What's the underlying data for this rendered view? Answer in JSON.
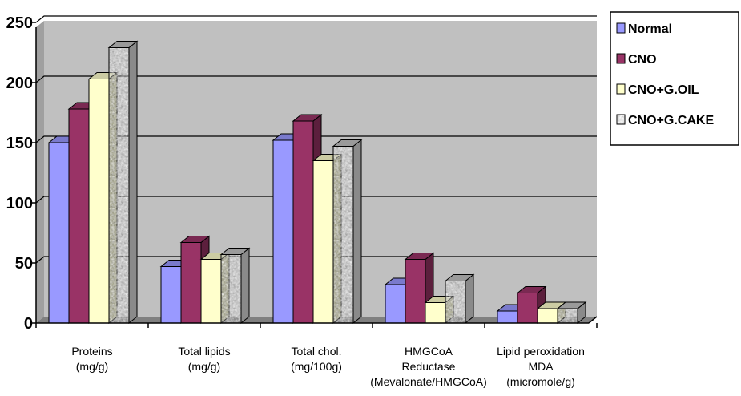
{
  "chart_data": {
    "type": "bar",
    "title": "",
    "xlabel": "",
    "ylabel": "",
    "ylim": [
      0,
      250
    ],
    "yticks": [
      0,
      50,
      100,
      150,
      200,
      250
    ],
    "grid": true,
    "legend_position": "right",
    "categories": [
      [
        "Proteins",
        "(mg/g)"
      ],
      [
        "Total lipids",
        "(mg/g)"
      ],
      [
        "Total chol.",
        "(mg/100g)"
      ],
      [
        "HMGCoA",
        "Reductase",
        "(Mevalonate/HMGCoA)"
      ],
      [
        "Lipid peroxidation",
        "MDA",
        "(micromole/g)"
      ]
    ],
    "series": [
      {
        "name": "Normal",
        "color": "#9999ff",
        "values": [
          150,
          47,
          152,
          32,
          10
        ]
      },
      {
        "name": "CNO",
        "color": "#993366",
        "values": [
          178,
          67,
          168,
          53,
          25
        ]
      },
      {
        "name": "CNO+G.OIL",
        "color": "#ffffcc",
        "values": [
          203,
          53,
          135,
          17,
          12
        ]
      },
      {
        "name": "CNO+G.CAKE",
        "color": "#b0b0b0",
        "pattern": "granite",
        "values": [
          229,
          57,
          147,
          35,
          12
        ]
      }
    ]
  }
}
